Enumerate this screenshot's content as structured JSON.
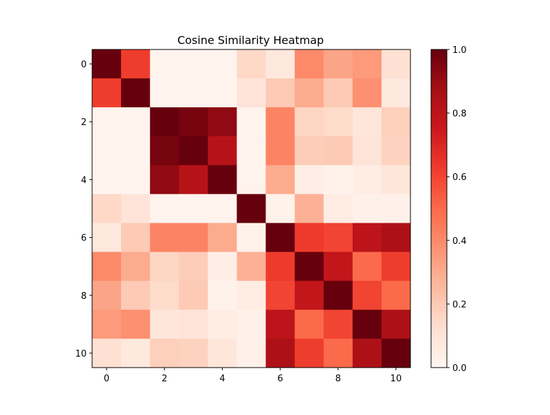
{
  "chart_data": {
    "type": "heatmap",
    "title": "Cosine Similarity Heatmap",
    "xlabel": "",
    "ylabel": "",
    "x_tick_labels": [
      "0",
      "2",
      "4",
      "6",
      "8",
      "10"
    ],
    "y_tick_labels": [
      "0",
      "2",
      "4",
      "6",
      "8",
      "10"
    ],
    "x_ticks": [
      0,
      2,
      4,
      6,
      8,
      10
    ],
    "y_ticks": [
      0,
      2,
      4,
      6,
      8,
      10
    ],
    "colormap": "Reds",
    "colorbar": {
      "range": [
        0.0,
        1.0
      ],
      "ticks": [
        0.0,
        0.2,
        0.4,
        0.6,
        0.8,
        1.0
      ],
      "tick_labels": [
        "0.0",
        "0.2",
        "0.4",
        "0.6",
        "0.8",
        "1.0"
      ]
    },
    "grid": false,
    "matrix": [
      [
        1.0,
        0.62,
        0.01,
        0.01,
        0.01,
        0.15,
        0.08,
        0.4,
        0.32,
        0.35,
        0.12
      ],
      [
        0.62,
        1.0,
        0.01,
        0.01,
        0.01,
        0.1,
        0.2,
        0.3,
        0.2,
        0.38,
        0.07
      ],
      [
        0.01,
        0.01,
        1.0,
        0.97,
        0.92,
        0.01,
        0.42,
        0.16,
        0.14,
        0.09,
        0.18
      ],
      [
        0.01,
        0.01,
        0.97,
        1.0,
        0.82,
        0.01,
        0.42,
        0.19,
        0.2,
        0.1,
        0.17
      ],
      [
        0.01,
        0.01,
        0.92,
        0.82,
        1.0,
        0.01,
        0.3,
        0.04,
        0.02,
        0.05,
        0.09
      ],
      [
        0.15,
        0.1,
        0.01,
        0.01,
        0.01,
        1.0,
        0.02,
        0.28,
        0.05,
        0.03,
        0.03
      ],
      [
        0.08,
        0.2,
        0.42,
        0.42,
        0.3,
        0.02,
        1.0,
        0.63,
        0.6,
        0.8,
        0.85
      ],
      [
        0.4,
        0.3,
        0.16,
        0.19,
        0.04,
        0.28,
        0.63,
        1.0,
        0.78,
        0.5,
        0.62
      ],
      [
        0.32,
        0.2,
        0.14,
        0.2,
        0.02,
        0.05,
        0.6,
        0.78,
        1.0,
        0.6,
        0.5
      ],
      [
        0.35,
        0.38,
        0.09,
        0.1,
        0.05,
        0.03,
        0.8,
        0.5,
        0.6,
        1.0,
        0.85
      ],
      [
        0.12,
        0.07,
        0.18,
        0.17,
        0.09,
        0.03,
        0.85,
        0.62,
        0.5,
        0.85,
        1.0
      ]
    ]
  }
}
